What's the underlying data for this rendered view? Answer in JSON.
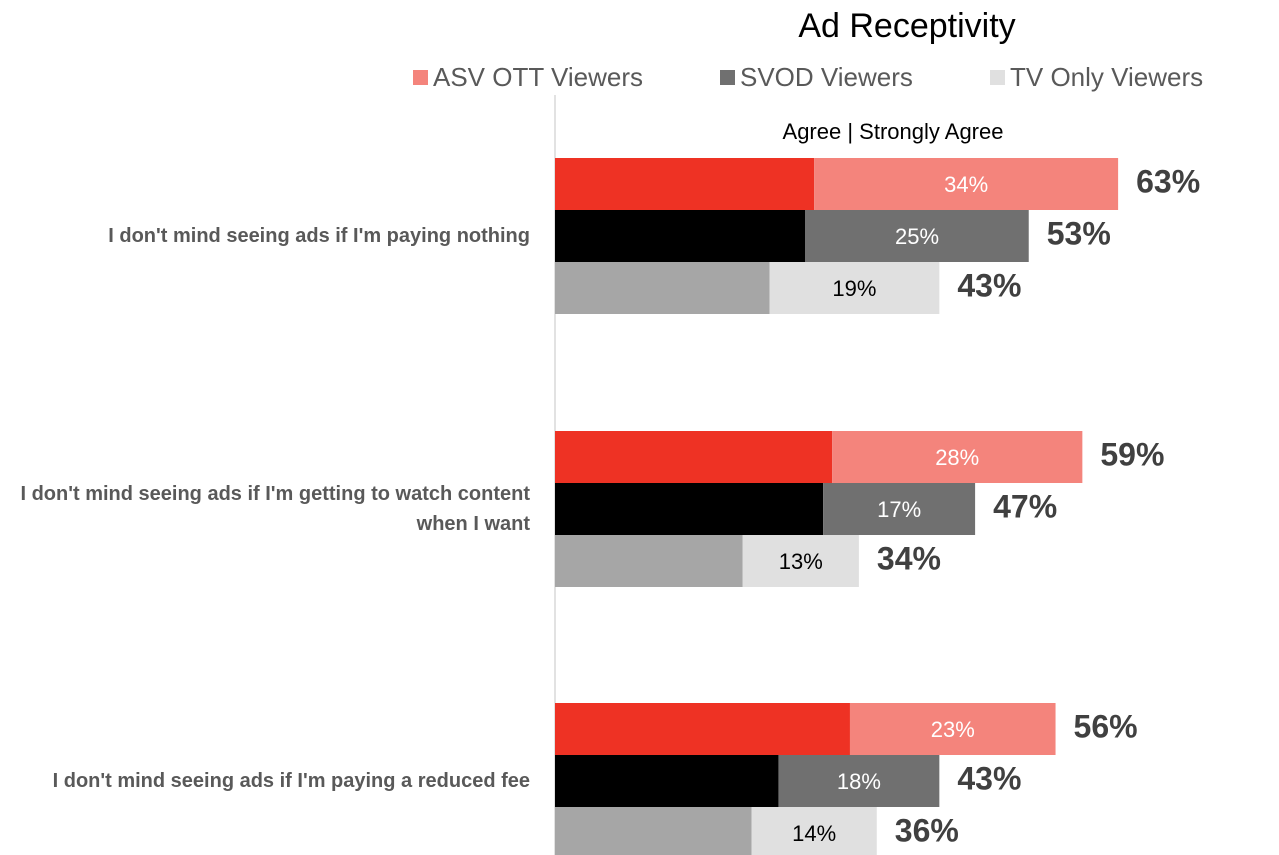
{
  "chart_data": {
    "type": "stacked-bar-horizontal",
    "title": "Ad Receptivity",
    "subtitle": "Agree | Strongly Agree",
    "categories": [
      "I don't mind seeing ads if I'm paying nothing",
      "I don't mind seeing ads if I'm getting to watch content when I want",
      "I don't mind seeing ads if I'm paying a reduced fee"
    ],
    "series": [
      {
        "name": "ASV OTT Viewers",
        "color": "#f4847c",
        "agree_color": "#ee3224",
        "label_color": "#ffffff",
        "agree": [
          29,
          31,
          33
        ],
        "strongly_agree": [
          34,
          28,
          23
        ],
        "strongly_agree_labels": [
          "34%",
          "28%",
          "23%"
        ],
        "totals": [
          63,
          59,
          56
        ],
        "total_labels": [
          "63%",
          "59%",
          "56%"
        ]
      },
      {
        "name": "SVOD Viewers",
        "color": "#707070",
        "agree_color": "#000000",
        "label_color": "#ffffff",
        "agree": [
          28,
          30,
          25
        ],
        "strongly_agree": [
          25,
          17,
          18
        ],
        "strongly_agree_labels": [
          "25%",
          "17%",
          "18%"
        ],
        "totals": [
          53,
          47,
          43
        ],
        "total_labels": [
          "53%",
          "47%",
          "43%"
        ]
      },
      {
        "name": "TV Only Viewers",
        "color": "#e0e0e0",
        "agree_color": "#a6a6a6",
        "label_color": "#000000",
        "agree": [
          24,
          21,
          22
        ],
        "strongly_agree": [
          19,
          13,
          14
        ],
        "strongly_agree_labels": [
          "19%",
          "13%",
          "14%"
        ],
        "totals": [
          43,
          34,
          36
        ],
        "total_labels": [
          "43%",
          "34%",
          "36%"
        ]
      }
    ],
    "xlim": [
      0,
      81
    ]
  }
}
